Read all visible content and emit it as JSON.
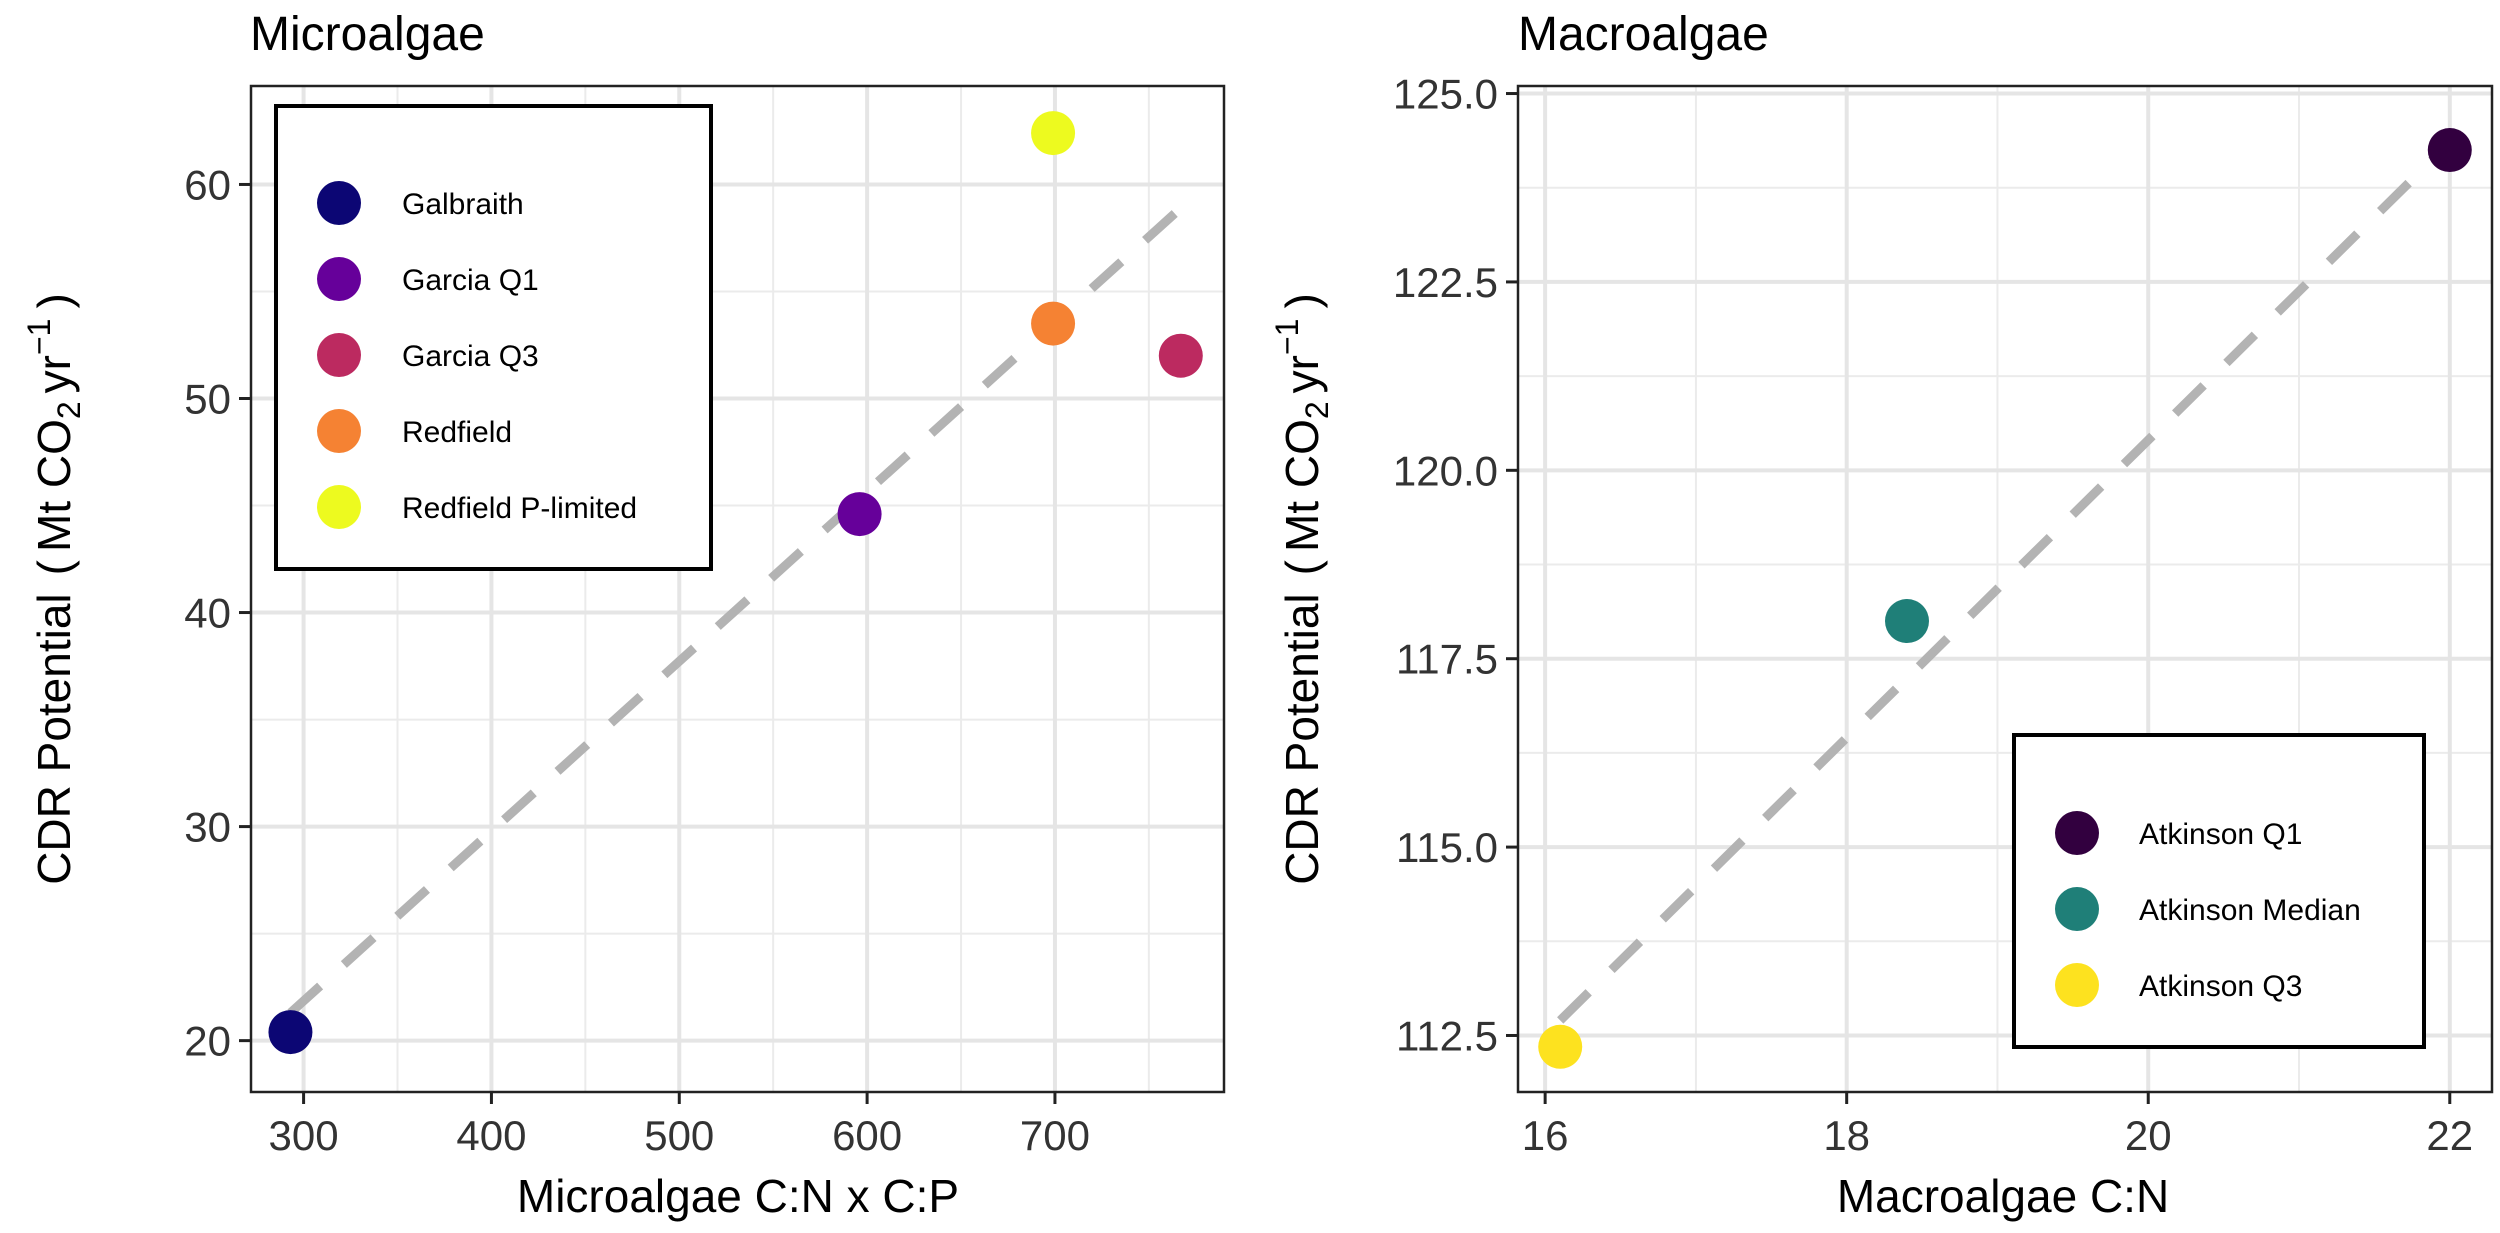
{
  "chart_data": [
    {
      "type": "scatter",
      "title": "Microalgae",
      "xlabel": "Microalgae C:N x C:P",
      "ylabel": {
        "main": "CDR Potential",
        "open": "(",
        "unit": "Mt CO",
        "sub": "2",
        "yr": "yr",
        "sup": "−1",
        "close": ")"
      },
      "xlim": [
        272,
        790
      ],
      "ylim": [
        17.6,
        64.6
      ],
      "xticks": [
        300,
        400,
        500,
        600,
        700
      ],
      "yticks": [
        20,
        30,
        40,
        50,
        60
      ],
      "xtick_labels": [
        "300",
        "400",
        "500",
        "600",
        "700"
      ],
      "ytick_labels": [
        "20",
        "30",
        "40",
        "50",
        "60"
      ],
      "grid": true,
      "legend_position": "top-left",
      "series": [
        {
          "name": "Galbraith",
          "x": 293,
          "y": 20.4,
          "color": "#0C0674"
        },
        {
          "name": "Garcia Q1",
          "x": 596,
          "y": 44.6,
          "color": "#66009A"
        },
        {
          "name": "Garcia Q3",
          "x": 767,
          "y": 52.0,
          "color": "#BC2A60"
        },
        {
          "name": "Redfield",
          "x": 699,
          "y": 53.5,
          "color": "#F58233"
        },
        {
          "name": "Redfield P-limited",
          "x": 699,
          "y": 62.4,
          "color": "#EDFA1F"
        }
      ],
      "fit_line": {
        "x": [
          293,
          767
        ],
        "y": [
          21.3,
          58.9
        ],
        "style": "dashed",
        "color": "#B3B3B3"
      }
    },
    {
      "type": "scatter",
      "title": "Macroalgae",
      "xlabel": "Macroalgae C:N",
      "ylabel": {
        "main": "CDR Potential",
        "open": "(",
        "unit": "Mt CO",
        "sub": "2",
        "yr": "yr",
        "sup": "−1",
        "close": ")"
      },
      "xlim": [
        15.82,
        22.28
      ],
      "ylim": [
        111.75,
        125.1
      ],
      "xticks": [
        16,
        18,
        20,
        22
      ],
      "yticks": [
        112.5,
        115.0,
        117.5,
        120.0,
        122.5,
        125.0
      ],
      "xtick_labels": [
        "16",
        "18",
        "20",
        "22"
      ],
      "ytick_labels": [
        "112.5",
        "115.0",
        "117.5",
        "120.0",
        "122.5",
        "125.0"
      ],
      "grid": true,
      "legend_position": "bottom-right",
      "series": [
        {
          "name": "Atkinson Q1",
          "x": 22.0,
          "y": 124.25,
          "color": "#32003F"
        },
        {
          "name": "Atkinson Median",
          "x": 18.4,
          "y": 118.0,
          "color": "#1F7F78"
        },
        {
          "name": "Atkinson Q3",
          "x": 16.1,
          "y": 112.35,
          "color": "#FDE21F"
        }
      ],
      "fit_line": {
        "x": [
          16.1,
          22.0
        ],
        "y": [
          112.7,
          124.35
        ],
        "style": "dashed",
        "color": "#B3B3B3"
      }
    }
  ]
}
